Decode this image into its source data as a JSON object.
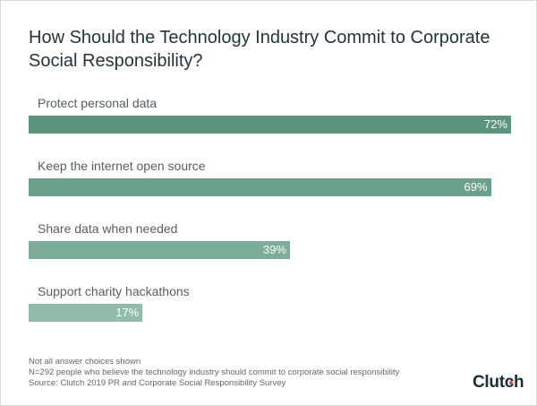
{
  "chart_data": {
    "type": "bar",
    "orientation": "horizontal",
    "title": "How Should the Technology Industry Commit to Corporate Social Responsibility?",
    "categories": [
      "Protect personal data",
      "Keep the internet open source",
      "Share data when needed",
      "Support charity hackathons"
    ],
    "values": [
      72,
      69,
      39,
      17
    ],
    "value_labels": [
      "72%",
      "69%",
      "39%",
      "17%"
    ],
    "colors": [
      "#5b957b",
      "#6ba189",
      "#7cad97",
      "#92bba8"
    ],
    "xlim": [
      0,
      72
    ],
    "xlabel": "",
    "ylabel": "",
    "grid": false
  },
  "notes": [
    "Not all answer choices shown",
    "N=292 people who believe the technology industry should commit to corporate social responsibility",
    "Source: Clutch 2019 PR and Corporate Social Responsibility Survey"
  ],
  "logo": "Clutch"
}
